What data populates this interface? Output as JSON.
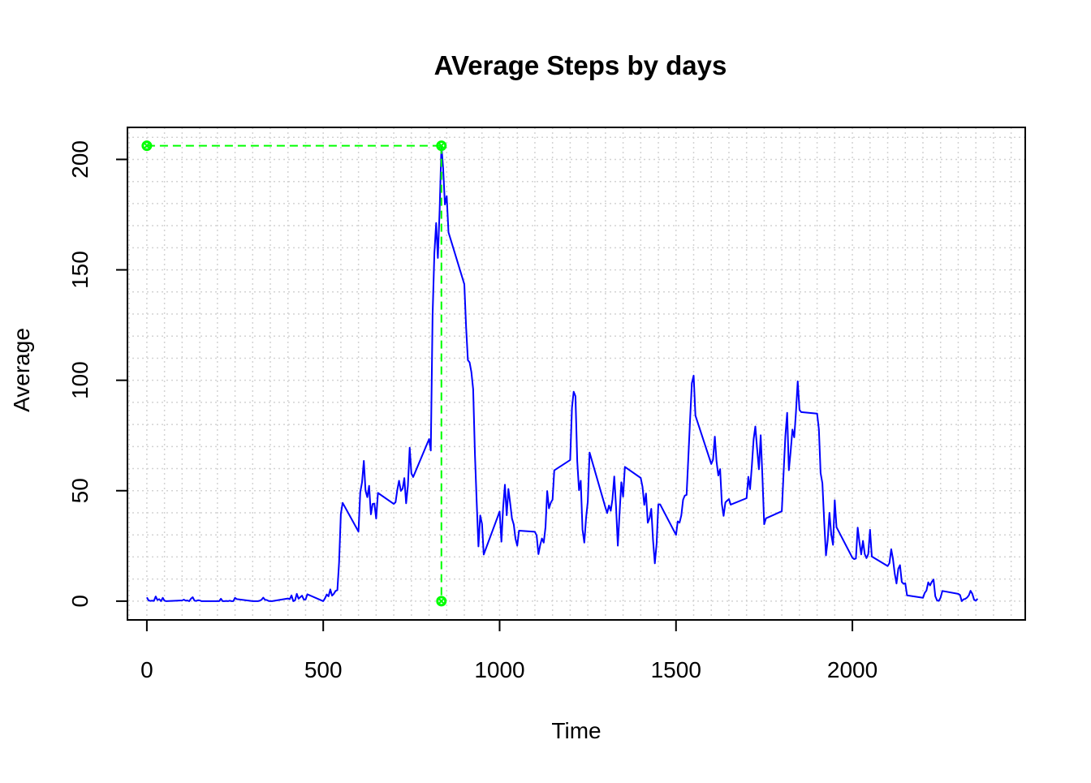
{
  "chart_data": {
    "type": "line",
    "title": "AVerage Steps by days",
    "xlabel": "Time",
    "ylabel": "Average",
    "xlim": [
      -55,
      2490
    ],
    "ylim": [
      -8.5,
      214.5
    ],
    "x_ticks": [
      0,
      500,
      1000,
      1500,
      2000
    ],
    "y_ticks": [
      0,
      50,
      100,
      150,
      200
    ],
    "grid": true,
    "colors": {
      "line": "#0000FF",
      "marker": "#00FF00",
      "grid": "#D3D3D3",
      "frame": "#000000"
    },
    "series": [
      {
        "points": [
          [
            0,
            1.7
          ],
          [
            5,
            0.3
          ],
          [
            10,
            0.1
          ],
          [
            15,
            0.2
          ],
          [
            20,
            0.1
          ],
          [
            25,
            2.1
          ],
          [
            30,
            0.5
          ],
          [
            35,
            0.9
          ],
          [
            40,
            0
          ],
          [
            45,
            1.5
          ],
          [
            50,
            0.2
          ],
          [
            55,
            0
          ],
          [
            100,
            0.3
          ],
          [
            105,
            0.7
          ],
          [
            110,
            0.2
          ],
          [
            115,
            0.3
          ],
          [
            120,
            0
          ],
          [
            125,
            1.1
          ],
          [
            130,
            1.8
          ],
          [
            135,
            0.2
          ],
          [
            140,
            0.1
          ],
          [
            145,
            0.4
          ],
          [
            150,
            0.3
          ],
          [
            155,
            0
          ],
          [
            200,
            0
          ],
          [
            205,
            0
          ],
          [
            210,
            1.1
          ],
          [
            215,
            0
          ],
          [
            220,
            0
          ],
          [
            225,
            0.1
          ],
          [
            230,
            0
          ],
          [
            235,
            0.2
          ],
          [
            240,
            0
          ],
          [
            245,
            0
          ],
          [
            250,
            1.5
          ],
          [
            255,
            0.9
          ],
          [
            300,
            0
          ],
          [
            305,
            0
          ],
          [
            310,
            0
          ],
          [
            315,
            0
          ],
          [
            320,
            0.2
          ],
          [
            325,
            0.6
          ],
          [
            330,
            1.6
          ],
          [
            335,
            0.6
          ],
          [
            340,
            0.5
          ],
          [
            345,
            0.1
          ],
          [
            350,
            0
          ],
          [
            355,
            0
          ],
          [
            400,
            1.2
          ],
          [
            405,
            0.9
          ],
          [
            410,
            2.6
          ],
          [
            415,
            0
          ],
          [
            420,
            0.3
          ],
          [
            425,
            3.3
          ],
          [
            430,
            1.1
          ],
          [
            435,
            1.8
          ],
          [
            440,
            2.5
          ],
          [
            445,
            0.7
          ],
          [
            450,
            0.8
          ],
          [
            455,
            3.1
          ],
          [
            500,
            0
          ],
          [
            505,
            1.3
          ],
          [
            510,
            3
          ],
          [
            515,
            2.2
          ],
          [
            520,
            5.3
          ],
          [
            525,
            2.5
          ],
          [
            530,
            3.3
          ],
          [
            535,
            4.6
          ],
          [
            540,
            5
          ],
          [
            545,
            17.4
          ],
          [
            550,
            39.5
          ],
          [
            555,
            44.5
          ],
          [
            600,
            31.5
          ],
          [
            605,
            49.3
          ],
          [
            610,
            53.8
          ],
          [
            615,
            63.5
          ],
          [
            620,
            50
          ],
          [
            625,
            47.1
          ],
          [
            630,
            52.2
          ],
          [
            635,
            39.3
          ],
          [
            640,
            44
          ],
          [
            645,
            44.2
          ],
          [
            650,
            37.4
          ],
          [
            655,
            49
          ],
          [
            700,
            44
          ],
          [
            705,
            44.8
          ],
          [
            710,
            50.5
          ],
          [
            715,
            54.5
          ],
          [
            720,
            49.9
          ],
          [
            725,
            50.9
          ],
          [
            730,
            55.7
          ],
          [
            735,
            44.3
          ],
          [
            740,
            52.3
          ],
          [
            745,
            69.5
          ],
          [
            750,
            57.8
          ],
          [
            755,
            56.2
          ],
          [
            800,
            73.4
          ],
          [
            805,
            68.2
          ],
          [
            810,
            129.4
          ],
          [
            815,
            157.5
          ],
          [
            820,
            171.2
          ],
          [
            825,
            155.4
          ],
          [
            830,
            177.3
          ],
          [
            835,
            206.2
          ],
          [
            840,
            195.9
          ],
          [
            845,
            179.6
          ],
          [
            850,
            183.4
          ],
          [
            855,
            167
          ],
          [
            900,
            143.5
          ],
          [
            905,
            124
          ],
          [
            910,
            109.1
          ],
          [
            915,
            108.1
          ],
          [
            920,
            103.7
          ],
          [
            925,
            95.9
          ],
          [
            930,
            66.2
          ],
          [
            935,
            45.2
          ],
          [
            940,
            24.8
          ],
          [
            945,
            38.8
          ],
          [
            950,
            35
          ],
          [
            955,
            21.1
          ],
          [
            1000,
            40.6
          ],
          [
            1005,
            26.9
          ],
          [
            1010,
            42.4
          ],
          [
            1015,
            52.7
          ],
          [
            1020,
            38.9
          ],
          [
            1025,
            50.8
          ],
          [
            1030,
            44.3
          ],
          [
            1035,
            37.4
          ],
          [
            1040,
            34.7
          ],
          [
            1045,
            28.3
          ],
          [
            1050,
            25.1
          ],
          [
            1055,
            31.9
          ],
          [
            1100,
            31.4
          ],
          [
            1105,
            29.7
          ],
          [
            1110,
            21.3
          ],
          [
            1115,
            25.5
          ],
          [
            1120,
            28.4
          ],
          [
            1125,
            26.5
          ],
          [
            1130,
            33.4
          ],
          [
            1135,
            49.8
          ],
          [
            1140,
            42
          ],
          [
            1145,
            44.6
          ],
          [
            1150,
            46
          ],
          [
            1155,
            59.2
          ],
          [
            1200,
            63.9
          ],
          [
            1205,
            87.5
          ],
          [
            1210,
            94.8
          ],
          [
            1215,
            92.8
          ],
          [
            1220,
            63.4
          ],
          [
            1225,
            50.2
          ],
          [
            1230,
            54.5
          ],
          [
            1235,
            32.4
          ],
          [
            1240,
            26.5
          ],
          [
            1245,
            37.7
          ],
          [
            1250,
            45.1
          ],
          [
            1255,
            67.3
          ],
          [
            1300,
            42.3
          ],
          [
            1305,
            39.9
          ],
          [
            1310,
            43.3
          ],
          [
            1315,
            40.9
          ],
          [
            1320,
            46.2
          ],
          [
            1325,
            56.4
          ],
          [
            1330,
            42.8
          ],
          [
            1335,
            25.1
          ],
          [
            1340,
            39.5
          ],
          [
            1345,
            53.8
          ],
          [
            1350,
            47.3
          ],
          [
            1355,
            60.8
          ],
          [
            1400,
            55.8
          ],
          [
            1405,
            51.8
          ],
          [
            1410,
            43.6
          ],
          [
            1415,
            48.7
          ],
          [
            1420,
            35.5
          ],
          [
            1425,
            37.5
          ],
          [
            1430,
            41.8
          ],
          [
            1435,
            27.5
          ],
          [
            1440,
            17.1
          ],
          [
            1445,
            26.1
          ],
          [
            1450,
            43.8
          ],
          [
            1455,
            43.8
          ],
          [
            1500,
            30
          ],
          [
            1505,
            36.1
          ],
          [
            1510,
            35.5
          ],
          [
            1515,
            38.8
          ],
          [
            1520,
            45.9
          ],
          [
            1525,
            47.8
          ],
          [
            1530,
            48.1
          ],
          [
            1535,
            65.3
          ],
          [
            1540,
            82.9
          ],
          [
            1545,
            98.7
          ],
          [
            1550,
            102.1
          ],
          [
            1555,
            84
          ],
          [
            1600,
            62.1
          ],
          [
            1605,
            64.1
          ],
          [
            1610,
            74.5
          ],
          [
            1615,
            63.2
          ],
          [
            1620,
            56.9
          ],
          [
            1625,
            59.8
          ],
          [
            1630,
            43.9
          ],
          [
            1635,
            38.6
          ],
          [
            1640,
            44.7
          ],
          [
            1645,
            45.5
          ],
          [
            1650,
            46.2
          ],
          [
            1655,
            43.7
          ],
          [
            1700,
            46.6
          ],
          [
            1705,
            56.3
          ],
          [
            1710,
            50.7
          ],
          [
            1715,
            61.2
          ],
          [
            1720,
            73.4
          ],
          [
            1725,
            79.1
          ],
          [
            1730,
            68.9
          ],
          [
            1735,
            59.7
          ],
          [
            1740,
            75.1
          ],
          [
            1745,
            56.5
          ],
          [
            1750,
            34.8
          ],
          [
            1755,
            37.5
          ],
          [
            1800,
            40.7
          ],
          [
            1805,
            58
          ],
          [
            1810,
            74.7
          ],
          [
            1815,
            85.3
          ],
          [
            1820,
            59.3
          ],
          [
            1825,
            67.8
          ],
          [
            1830,
            77.7
          ],
          [
            1835,
            74.2
          ],
          [
            1840,
            85.3
          ],
          [
            1845,
            99.5
          ],
          [
            1850,
            86.6
          ],
          [
            1855,
            85.6
          ],
          [
            1900,
            84.9
          ],
          [
            1905,
            77.8
          ],
          [
            1910,
            58
          ],
          [
            1915,
            53.4
          ],
          [
            1920,
            36.3
          ],
          [
            1925,
            20.7
          ],
          [
            1930,
            27.4
          ],
          [
            1935,
            40
          ],
          [
            1940,
            30.2
          ],
          [
            1945,
            25.5
          ],
          [
            1950,
            45.7
          ],
          [
            1955,
            33.5
          ],
          [
            2000,
            19.6
          ],
          [
            2005,
            19
          ],
          [
            2010,
            19.3
          ],
          [
            2015,
            33.3
          ],
          [
            2020,
            26.8
          ],
          [
            2025,
            21.2
          ],
          [
            2030,
            27.3
          ],
          [
            2035,
            21.3
          ],
          [
            2040,
            19.5
          ],
          [
            2045,
            21.3
          ],
          [
            2050,
            32.3
          ],
          [
            2055,
            20.2
          ],
          [
            2100,
            15.9
          ],
          [
            2105,
            17.2
          ],
          [
            2110,
            23.5
          ],
          [
            2115,
            19.2
          ],
          [
            2120,
            12.5
          ],
          [
            2125,
            8
          ],
          [
            2130,
            14.7
          ],
          [
            2135,
            16.3
          ],
          [
            2140,
            8.7
          ],
          [
            2145,
            7.8
          ],
          [
            2150,
            8.1
          ],
          [
            2155,
            2.6
          ],
          [
            2200,
            1.5
          ],
          [
            2205,
            3.7
          ],
          [
            2210,
            4.8
          ],
          [
            2215,
            8.5
          ],
          [
            2220,
            7.1
          ],
          [
            2225,
            8.7
          ],
          [
            2230,
            9.8
          ],
          [
            2235,
            2.2
          ],
          [
            2240,
            0.3
          ],
          [
            2245,
            0.1
          ],
          [
            2250,
            1.6
          ],
          [
            2255,
            4.6
          ],
          [
            2300,
            3.3
          ],
          [
            2305,
            2.8
          ],
          [
            2310,
            0
          ],
          [
            2315,
            0.8
          ],
          [
            2320,
            1
          ],
          [
            2325,
            1.6
          ],
          [
            2330,
            2.6
          ],
          [
            2335,
            4.7
          ],
          [
            2340,
            3.3
          ],
          [
            2345,
            0.6
          ],
          [
            2350,
            0.2
          ],
          [
            2355,
            1.1
          ]
        ]
      }
    ],
    "max_marker": {
      "x": 835,
      "y": 206.2
    }
  }
}
